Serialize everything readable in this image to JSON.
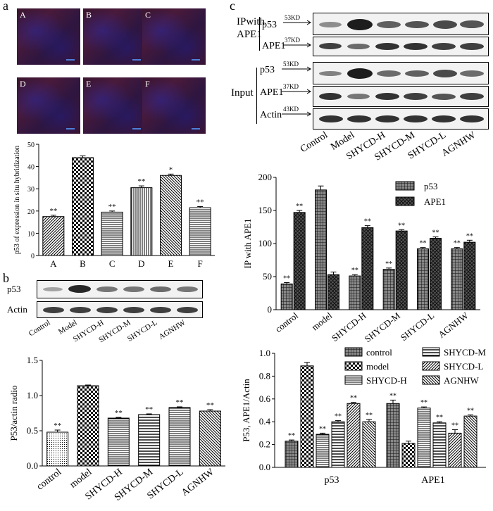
{
  "panels": {
    "a": "a",
    "b": "b",
    "c": "c"
  },
  "micro_labels": [
    "A",
    "B",
    "C",
    "D",
    "E",
    "F"
  ],
  "blot_b": {
    "rows": [
      "p53",
      "Actin"
    ],
    "lanes": [
      "Control",
      "Model",
      "SHYCD-H",
      "SHYCD-M",
      "SHYCD-L",
      "AGNHW"
    ]
  },
  "blot_c": {
    "ip_title_1": "IPwith",
    "ip_title_2": "APE1",
    "input_title": "Input",
    "rows": [
      "p53",
      "APE1",
      "p53",
      "APE1",
      "Actin"
    ],
    "kd": [
      "53KD",
      "37KD",
      "53KD",
      "37KD",
      "43KD"
    ],
    "lanes": [
      "Control",
      "Model",
      "SHYCD-H",
      "SHYCD-M",
      "SHYCD-L",
      "AGNHW"
    ]
  },
  "chart_data": [
    {
      "id": "a",
      "type": "bar",
      "ylabel": "p53 of expression in situ hybridization",
      "categories": [
        "A",
        "B",
        "C",
        "D",
        "E",
        "F"
      ],
      "values": [
        17.5,
        44,
        19.5,
        30.5,
        36,
        21.5
      ],
      "errors": [
        0.6,
        0.8,
        0.5,
        0.8,
        0.6,
        0.5
      ],
      "sig": [
        "**",
        "",
        "**",
        "**",
        "*",
        "**"
      ],
      "ylim": [
        0,
        50
      ],
      "yticks": [
        0,
        10,
        20,
        30,
        40,
        50
      ],
      "patterns": [
        "hatchR",
        "checker",
        "hlines",
        "vlines",
        "hatchL",
        "hlines"
      ]
    },
    {
      "id": "b",
      "type": "bar",
      "ylabel": "P53/actin radio",
      "categories": [
        "control",
        "model",
        "SHYCD-H",
        "SHYCD-M",
        "SHYCD-L",
        "AGNHW"
      ],
      "values": [
        0.48,
        1.14,
        0.68,
        0.73,
        0.83,
        0.78
      ],
      "errors": [
        0.03,
        0.01,
        0.01,
        0.01,
        0.01,
        0.02
      ],
      "sig": [
        "**",
        "",
        "**",
        "**",
        "**",
        "**"
      ],
      "ylim": [
        0,
        1.5
      ],
      "yticks": [
        0.0,
        0.5,
        1.0,
        1.5
      ],
      "patterns": [
        "dots",
        "checker",
        "hlines",
        "hlines2",
        "hlines",
        "hatchL"
      ]
    },
    {
      "id": "c1",
      "type": "bar",
      "ylabel": "IP with APE1",
      "categories": [
        "control",
        "model",
        "SHYCD-H",
        "SHYCD-M",
        "SHYCD-L",
        "AGNHW"
      ],
      "series": [
        {
          "name": "p53",
          "values": [
            39,
            181,
            51,
            61,
            92,
            92
          ],
          "errors": [
            2,
            6,
            2,
            2,
            2,
            2
          ],
          "sig": [
            "**",
            "",
            "**",
            "**",
            "**",
            "**"
          ]
        },
        {
          "name": "APE1",
          "values": [
            147,
            53,
            124,
            119,
            108,
            102
          ],
          "errors": [
            3,
            4,
            3,
            2,
            2,
            3
          ],
          "sig": [
            "**",
            "",
            "**",
            "**",
            "**",
            "**"
          ]
        }
      ],
      "ylim": [
        0,
        200
      ],
      "yticks": [
        0,
        50,
        100,
        150,
        200
      ],
      "legend": "top-right"
    },
    {
      "id": "c2",
      "type": "bar",
      "ylabel": "P53, APE1/Actin",
      "categories": [
        "p53",
        "APE1"
      ],
      "series": [
        {
          "name": "control",
          "values": [
            0.23,
            0.56
          ],
          "errors": [
            0.01,
            0.03
          ],
          "sig": [
            "**",
            "**"
          ]
        },
        {
          "name": "model",
          "values": [
            0.89,
            0.21
          ],
          "errors": [
            0.03,
            0.02
          ],
          "sig": [
            "",
            ""
          ]
        },
        {
          "name": "SHYCD-H",
          "values": [
            0.29,
            0.52
          ],
          "errors": [
            0.01,
            0.01
          ],
          "sig": [
            "**",
            "**"
          ]
        },
        {
          "name": "SHYCD-M",
          "values": [
            0.4,
            0.39
          ],
          "errors": [
            0.01,
            0.01
          ],
          "sig": [
            "**",
            "**"
          ]
        },
        {
          "name": "SHYCD-L",
          "values": [
            0.56,
            0.3
          ],
          "errors": [
            0.01,
            0.03
          ],
          "sig": [
            "**",
            "**"
          ]
        },
        {
          "name": "AGNHW",
          "values": [
            0.4,
            0.45
          ],
          "errors": [
            0.02,
            0.01
          ],
          "sig": [
            "**",
            "**"
          ]
        }
      ],
      "ylim": [
        0,
        1.0
      ],
      "yticks": [
        0.0,
        0.2,
        0.4,
        0.6,
        0.8,
        1.0
      ],
      "legend": "top"
    }
  ]
}
